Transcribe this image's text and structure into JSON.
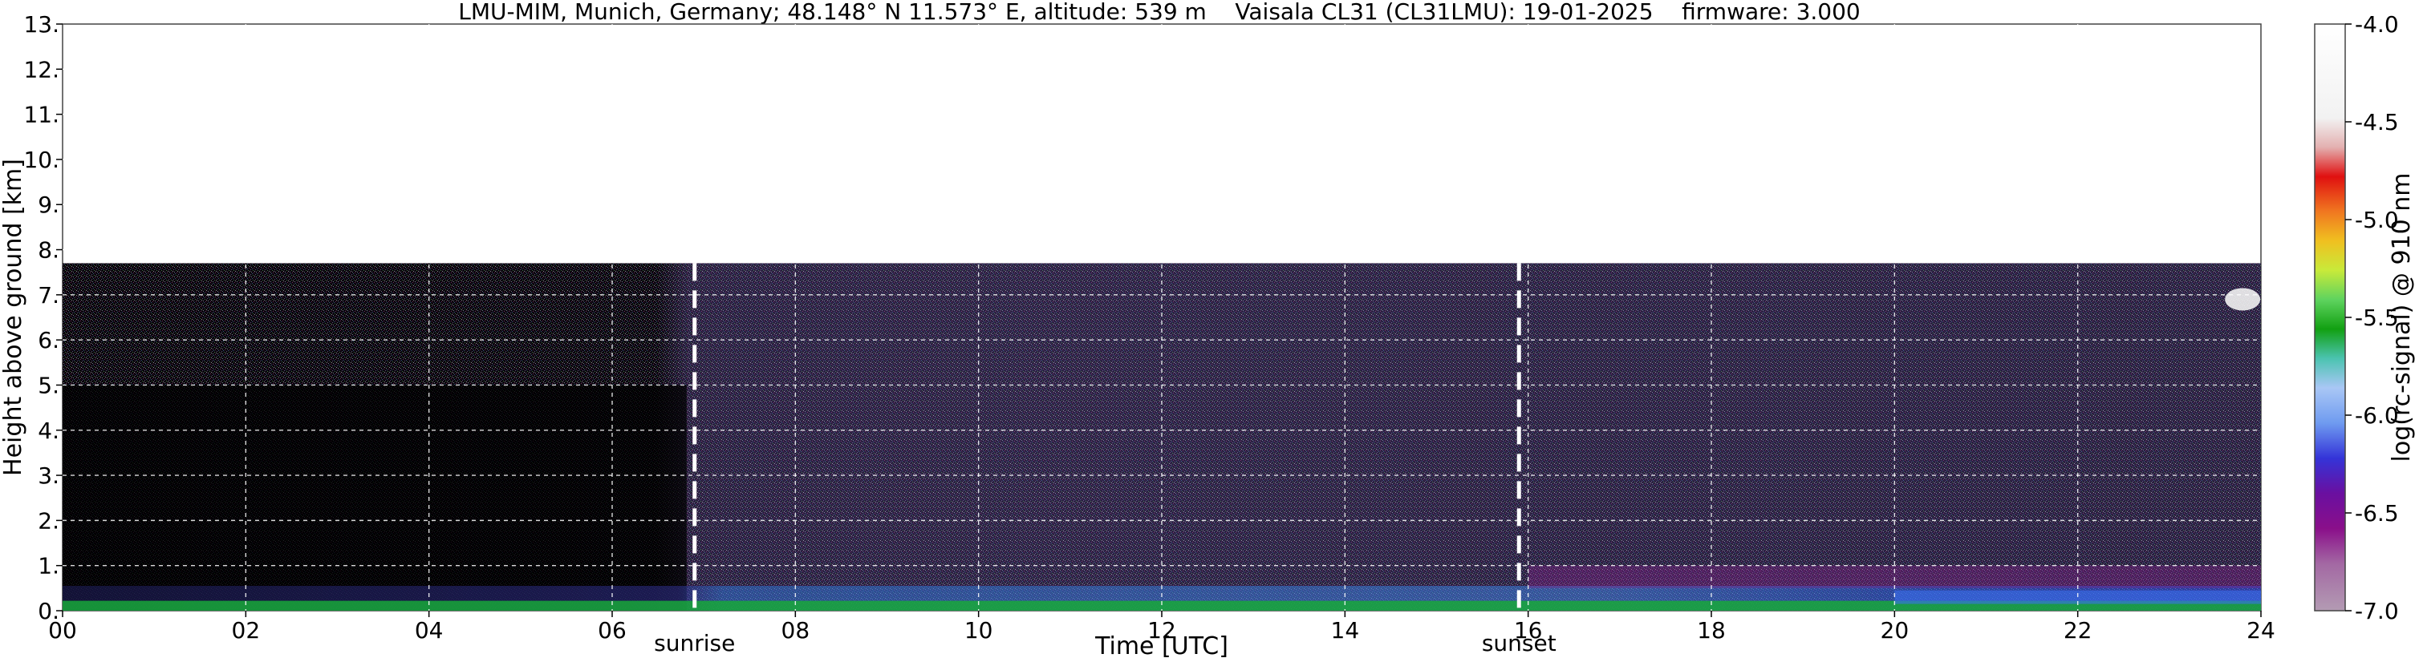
{
  "chart_data": {
    "type": "heatmap",
    "title": "LMU-MIM, Munich, Germany; 48.148° N 11.573° E, altitude: 539 m    Vaisala CL31 (CL31LMU): 19-01-2025    firmware: 3.000",
    "xlabel": "Time [UTC]",
    "ylabel": "Height above ground [km]",
    "xlim": [
      0,
      24
    ],
    "ylim": [
      0,
      13
    ],
    "x_ticks": [
      0,
      2,
      4,
      6,
      8,
      10,
      12,
      14,
      16,
      18,
      20,
      22,
      24
    ],
    "x_tick_labels": [
      "00",
      "02",
      "04",
      "06",
      "08",
      "10",
      "12",
      "14",
      "16",
      "18",
      "20",
      "22",
      "24"
    ],
    "y_ticks": [
      0,
      1,
      2,
      3,
      4,
      5,
      6,
      7,
      8,
      9,
      10,
      11,
      12,
      13
    ],
    "y_tick_labels": [
      "0.",
      "1.",
      "2.",
      "3.",
      "4.",
      "5.",
      "6.",
      "7.",
      "8.",
      "9.",
      "10.",
      "11.",
      "12.",
      "13."
    ],
    "grid": true,
    "data_top_km": 7.7,
    "events": [
      {
        "label": "sunrise",
        "time": 6.9
      },
      {
        "label": "sunset",
        "time": 15.9
      }
    ],
    "colorbar": {
      "label": "log(rc-signal) @ 910 nm",
      "range": [
        -7.0,
        -4.0
      ],
      "ticks": [
        -4.0,
        -4.5,
        -5.0,
        -5.5,
        -6.0,
        -6.5,
        -7.0
      ],
      "tick_labels": [
        "-4.0",
        "-4.5",
        "-5.0",
        "-5.5",
        "-6.0",
        "-6.5",
        "-7.0"
      ]
    }
  }
}
